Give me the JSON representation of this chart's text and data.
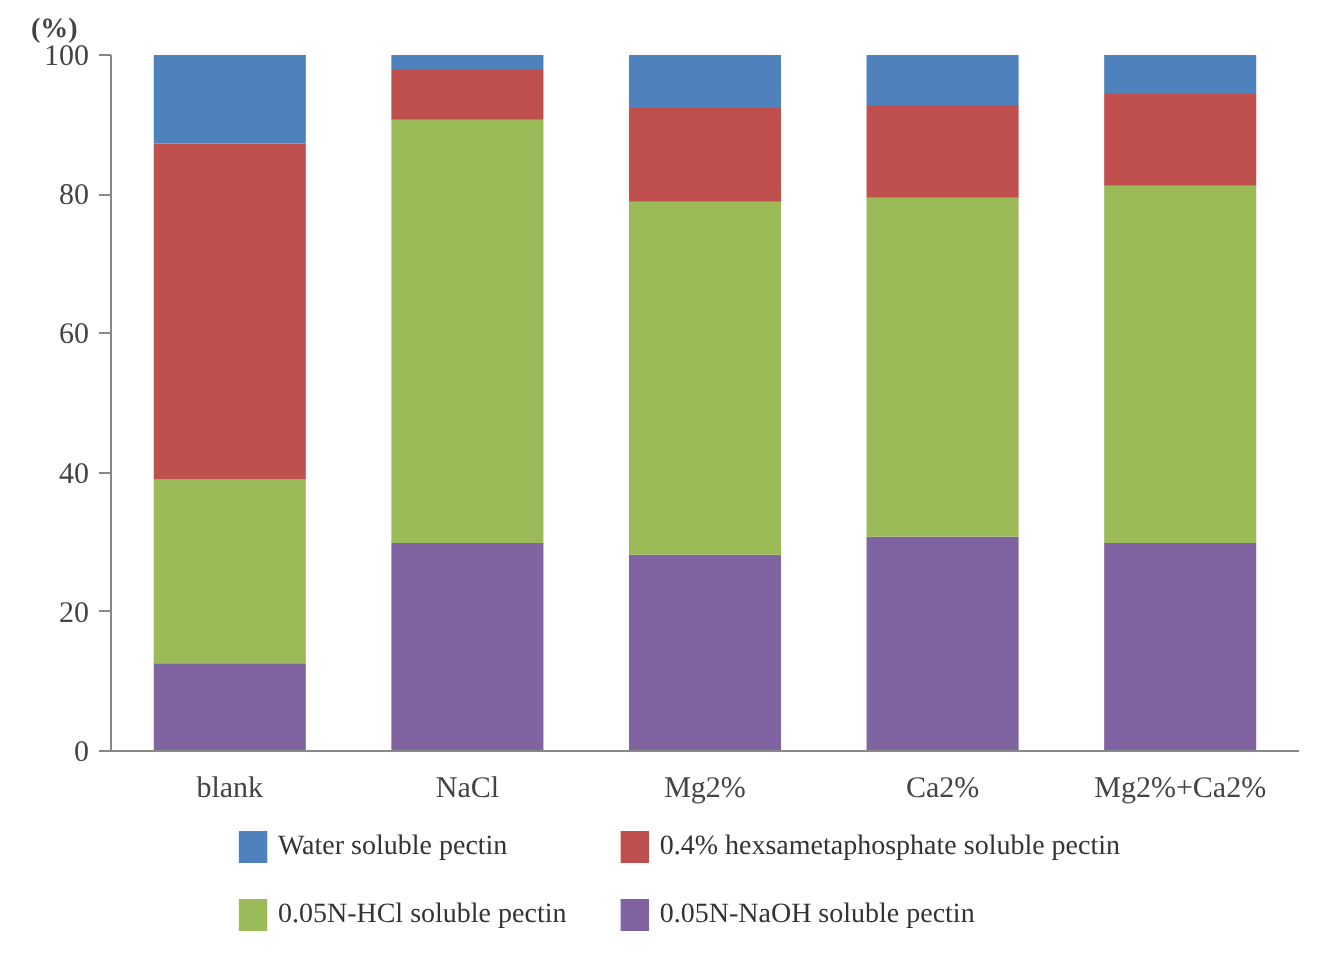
{
  "chart_data": {
    "type": "bar",
    "stacked": true,
    "ylabel": "(%)",
    "categories": [
      "blank",
      "NaCl",
      "Mg2%",
      "Ca2%",
      "Mg2%+Ca2%"
    ],
    "series": [
      {
        "name": "0.05N-NaOH soluble pectin",
        "color": "#8064a2",
        "values": [
          12.6,
          29.9,
          28.2,
          30.8,
          29.9
        ]
      },
      {
        "name": "0.05N-HCl soluble pectin",
        "color": "#9bbb59",
        "values": [
          26.4,
          60.8,
          50.7,
          48.7,
          51.3
        ]
      },
      {
        "name": "0.4% hexsametaphosphate  soluble pectin",
        "color": "#c0504d",
        "values": [
          48.3,
          7.3,
          13.5,
          13.3,
          13.2
        ]
      },
      {
        "name": "Water soluble pectin",
        "color": "#4f81bd",
        "values": [
          12.7,
          2.0,
          7.6,
          7.2,
          5.6
        ]
      }
    ],
    "ylim": [
      0,
      100
    ],
    "yticks": [
      0,
      20,
      40,
      60,
      80,
      100
    ],
    "grid": false,
    "legend": "bottom"
  }
}
